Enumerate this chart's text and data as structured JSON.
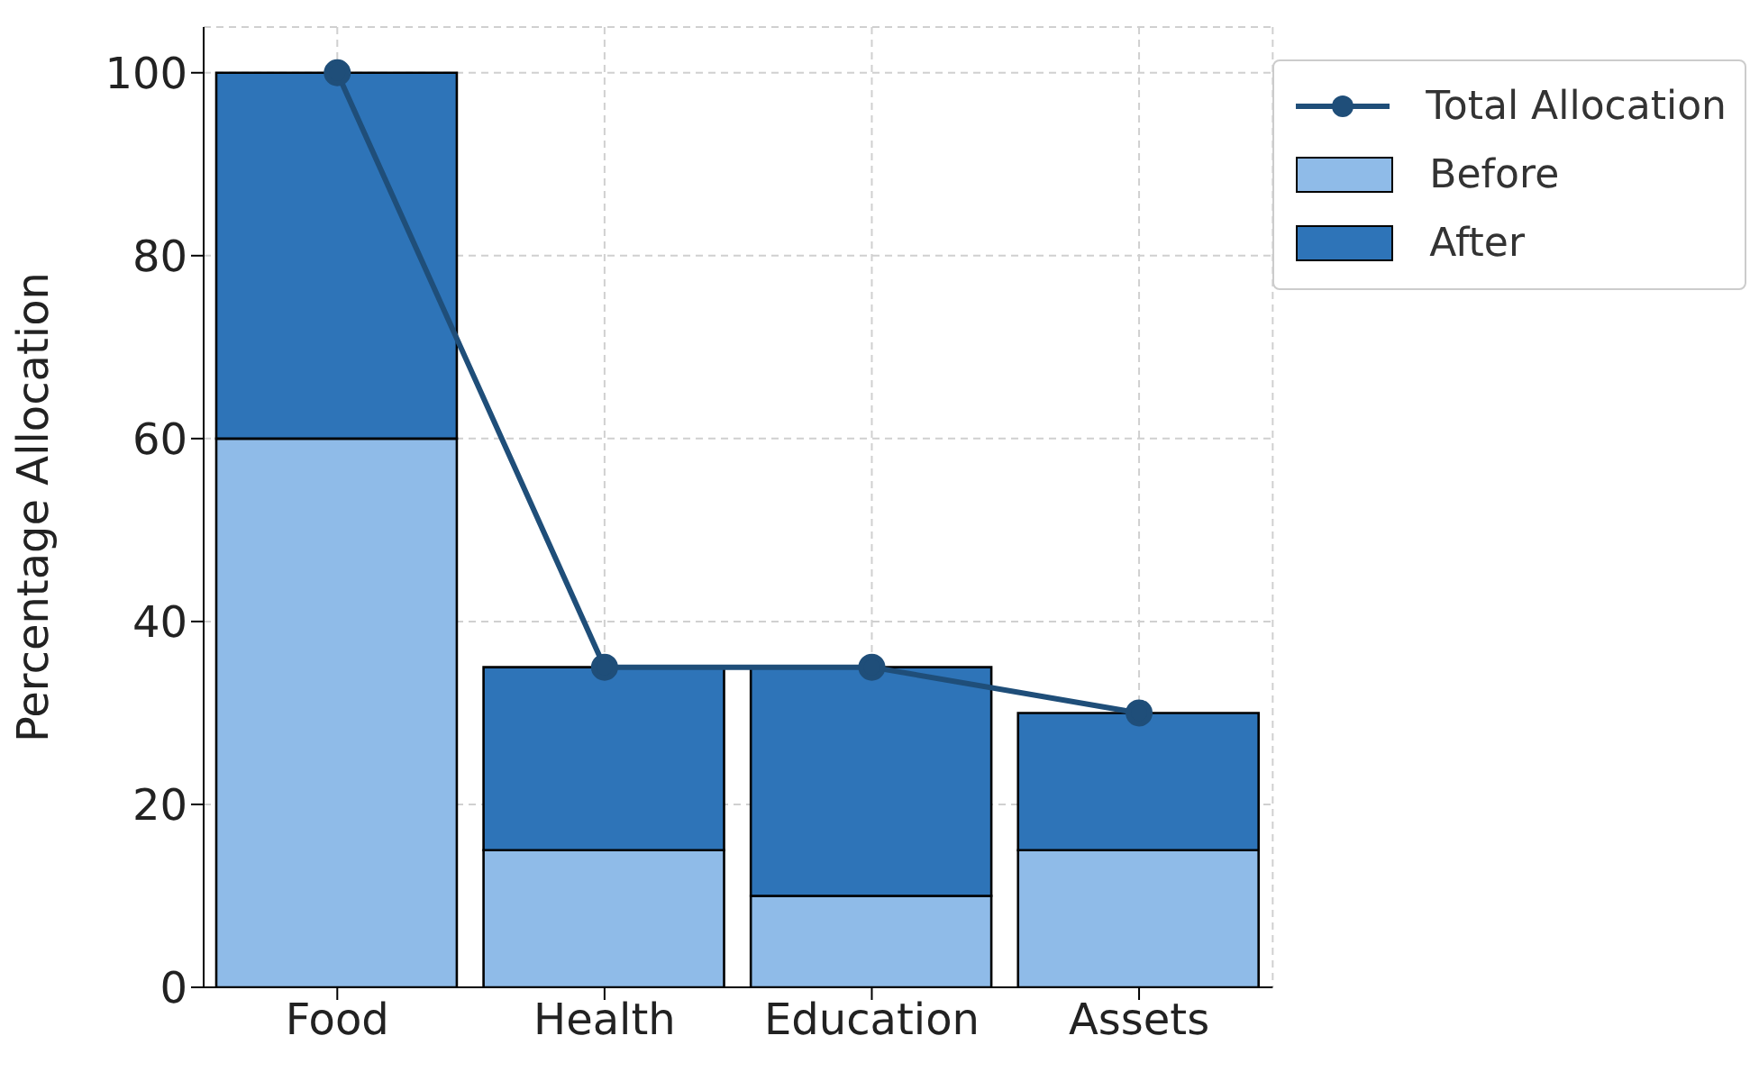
{
  "chart_data": {
    "type": "bar",
    "stacked": true,
    "ylabel": "Percentage Allocation",
    "categories": [
      "Food",
      "Health",
      "Education",
      "Assets"
    ],
    "series": [
      {
        "name": "Total Allocation",
        "type": "line",
        "color": "#1f4e79",
        "values": [
          100,
          35,
          35,
          30
        ]
      },
      {
        "name": "Before",
        "color": "#8fbbe8",
        "values": [
          60,
          15,
          10,
          15
        ]
      },
      {
        "name": "After",
        "color": "#2e74b8",
        "values": [
          40,
          20,
          25,
          15
        ]
      }
    ],
    "ylim": [
      0,
      105
    ],
    "yticks": [
      0,
      20,
      40,
      60,
      80,
      100
    ],
    "grid": true,
    "legend": "top right",
    "marker": "circle",
    "line_style": "solid"
  }
}
